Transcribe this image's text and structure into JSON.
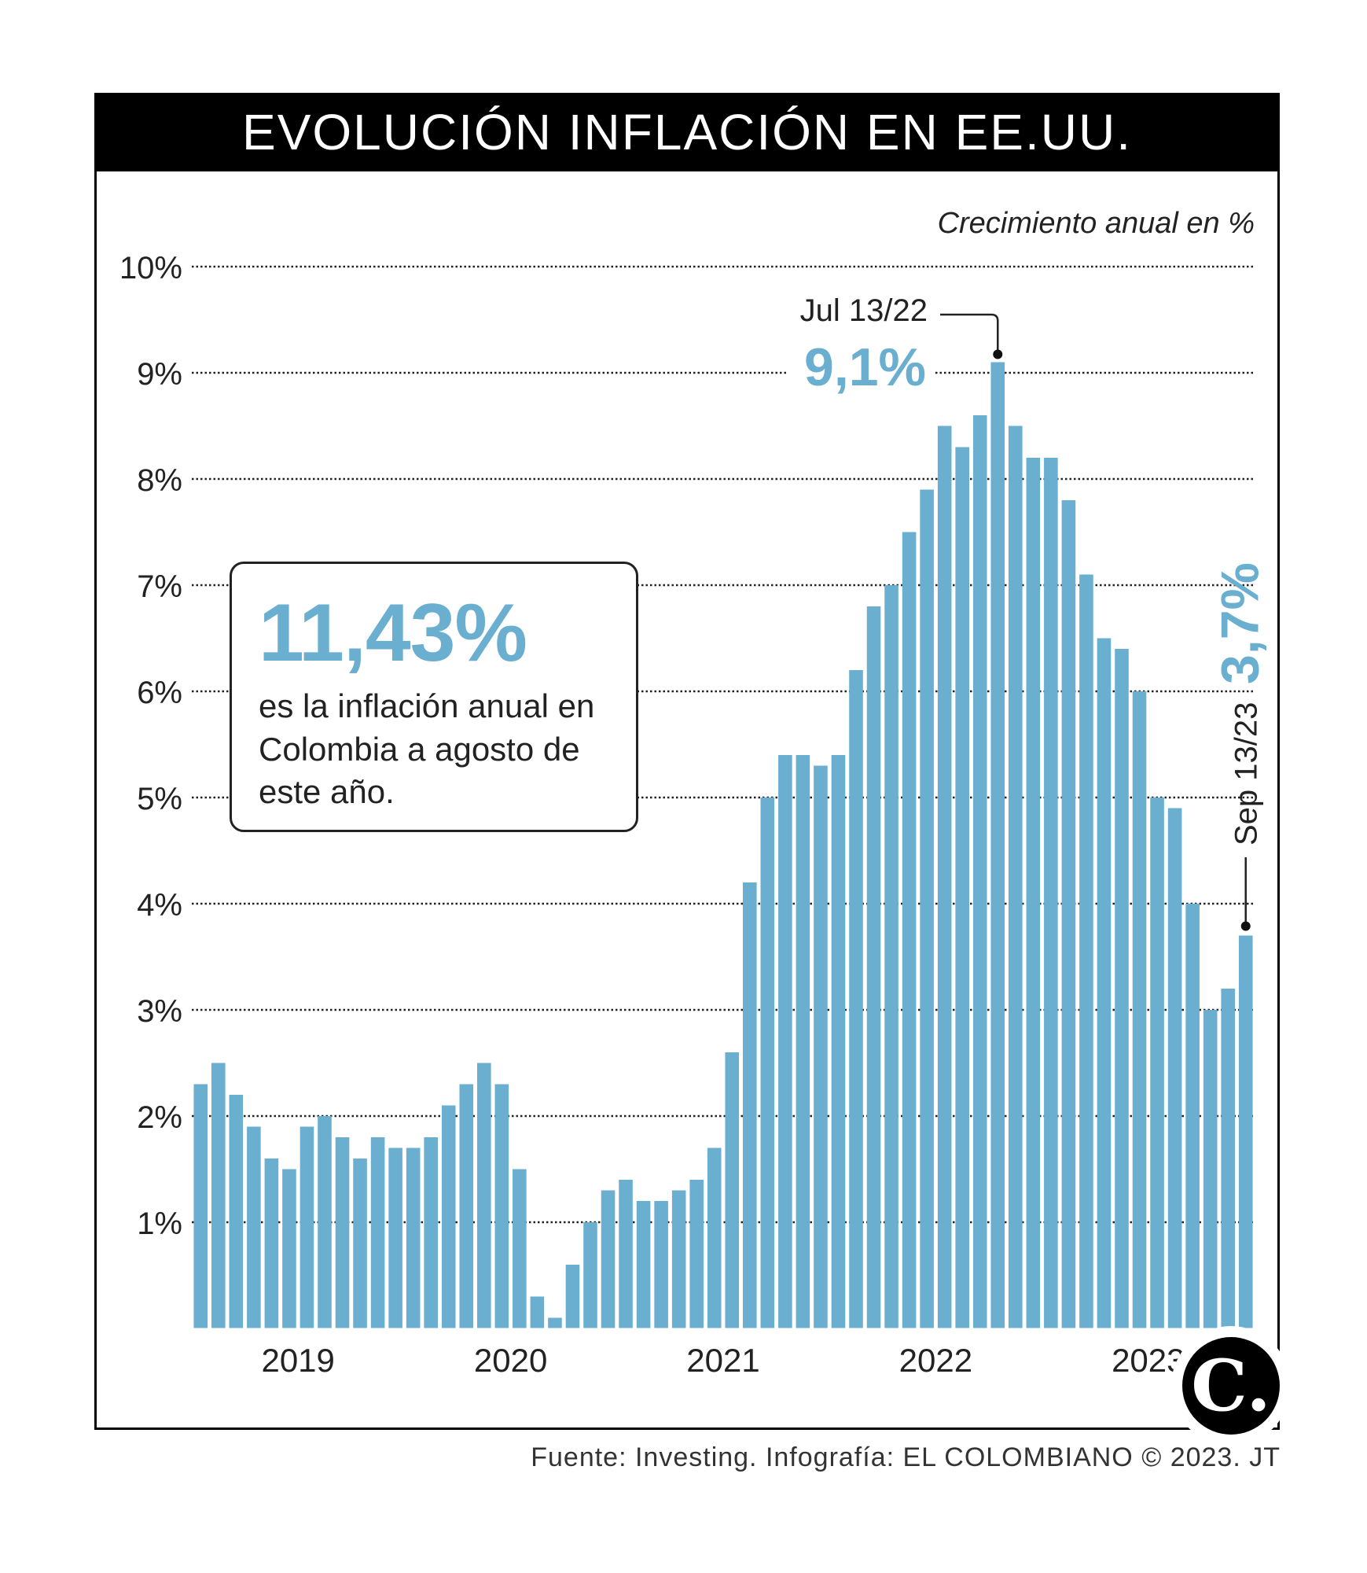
{
  "title": "EVOLUCIÓN INFLACIÓN EN EE.UU.",
  "subtitle": "Crecimiento anual en %",
  "source": "Fuente: Investing. Infografía: EL COLOMBIANO © 2023. JT",
  "logo_text": "C.",
  "callout": {
    "value": "11,43%",
    "text": "es la inflación anual en Colombia a agosto de este año."
  },
  "colors": {
    "bar": "#6aaed0",
    "highlight": "#6aaed0",
    "text": "#222222"
  },
  "chart_data": {
    "type": "bar",
    "title": "EVOLUCIÓN INFLACIÓN EN EE.UU.",
    "ylabel": "Crecimiento anual en %",
    "xlabel": "",
    "ylim": [
      0,
      10
    ],
    "y_ticks": [
      "1%",
      "2%",
      "3%",
      "4%",
      "5%",
      "6%",
      "7%",
      "8%",
      "9%",
      "10%"
    ],
    "year_labels": [
      "2019",
      "2020",
      "2021",
      "2022",
      "2023"
    ],
    "values": [
      2.3,
      2.5,
      2.2,
      1.9,
      1.6,
      1.5,
      1.9,
      2.0,
      1.8,
      1.6,
      1.8,
      1.7,
      1.7,
      1.8,
      2.1,
      2.3,
      2.5,
      2.3,
      1.5,
      0.3,
      0.1,
      0.6,
      1.0,
      1.3,
      1.4,
      1.2,
      1.2,
      1.3,
      1.4,
      1.7,
      2.6,
      4.2,
      5.0,
      5.4,
      5.4,
      5.3,
      5.4,
      6.2,
      6.8,
      7.0,
      7.5,
      7.9,
      8.5,
      8.3,
      8.6,
      9.1,
      8.5,
      8.2,
      8.2,
      7.8,
      7.1,
      6.5,
      6.4,
      6.0,
      5.0,
      4.9,
      4.0,
      3.0,
      3.2,
      3.7
    ],
    "annotations": [
      {
        "date": "Jul 13/22",
        "value_label": "9,1%",
        "value": 9.1
      },
      {
        "date": "Sep 13/23",
        "value_label": "3,7%",
        "value": 3.7
      }
    ]
  }
}
